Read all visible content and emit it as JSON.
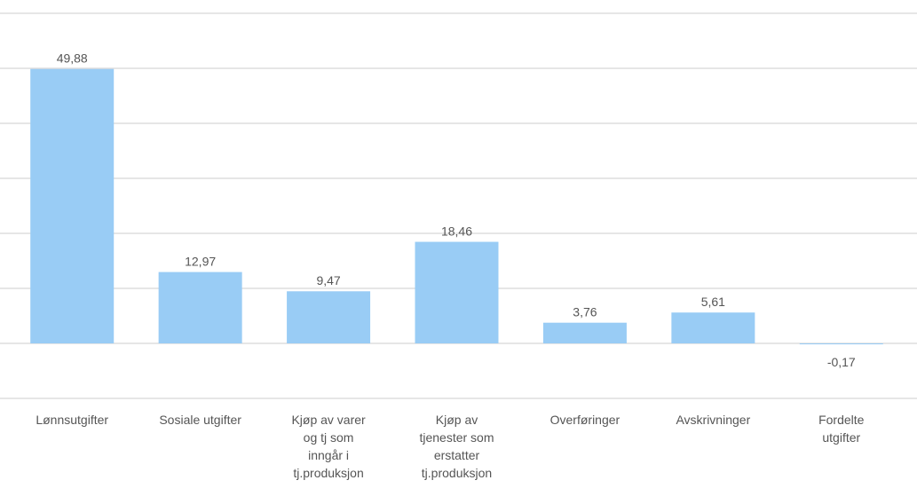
{
  "chart_data": {
    "type": "bar",
    "categories": [
      "Lønnsutgifter",
      "Sosiale utgifter",
      "Kjøp av varer og tj som inngår i tj.produksjon",
      "Kjøp av tjenester som erstatter tj.produksjon",
      "Overføringer",
      "Avskrivninger",
      "Fordelte utgifter"
    ],
    "values": [
      49.88,
      12.97,
      9.47,
      18.46,
      3.76,
      5.61,
      -0.17
    ],
    "value_labels": [
      "49,88",
      "12,97",
      "9,47",
      "18,46",
      "3,76",
      "5,61",
      "-0,17"
    ],
    "color": "#99ccf5",
    "ylim": [
      -10,
      60
    ],
    "yticks": [
      -10,
      0,
      10,
      20,
      30,
      40,
      50,
      60
    ],
    "grid": true
  }
}
